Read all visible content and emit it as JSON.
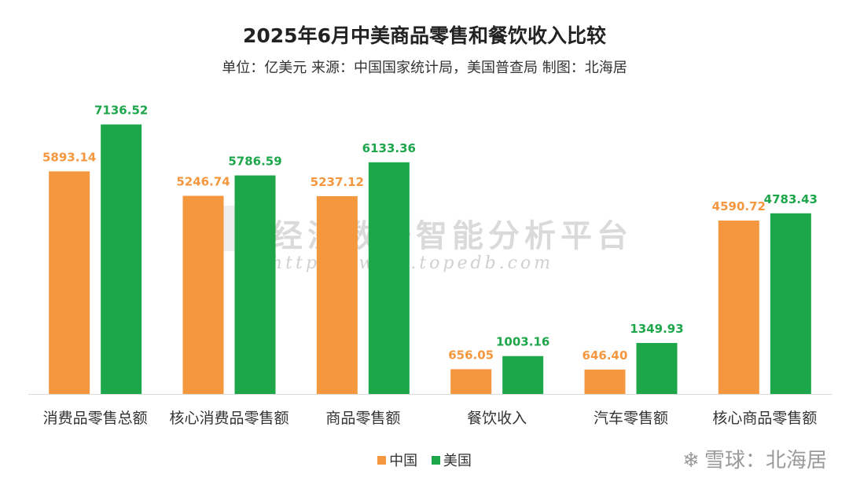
{
  "title": "2025年6月中美商品零售和餐饮收入比较",
  "subtitle": "单位：亿美元 来源：中国国家统计局，美国普查局 制图：北海居",
  "watermark": {
    "text": "经济数据智能分析平台",
    "url": "https://www.topedb.com"
  },
  "footer_watermark": {
    "icon": "snowball-icon",
    "text": "雪球：北海居"
  },
  "colors": {
    "china": "#F4973F",
    "usa": "#1DA64A"
  },
  "chart_data": {
    "type": "bar",
    "title": "2025年6月中美商品零售和餐饮收入比较",
    "subtitle": "单位：亿美元 来源：中国国家统计局，美国普查局 制图：北海居",
    "categories": [
      "消费品零售总额",
      "核心消费品零售额",
      "商品零售额",
      "餐饮收入",
      "汽车零售额",
      "核心商品零售额"
    ],
    "series": [
      {
        "name": "中国",
        "values": [
          5893.14,
          5246.74,
          5237.12,
          656.05,
          646.4,
          4590.72
        ],
        "labels": [
          "5893.14",
          "5246.74",
          "5237.12",
          "656.05",
          "646.40",
          "4590.72"
        ],
        "color": "#F4973F"
      },
      {
        "name": "美国",
        "values": [
          7136.52,
          5786.59,
          6133.36,
          1003.16,
          1349.93,
          4783.43
        ],
        "labels": [
          "7136.52",
          "5786.59",
          "6133.36",
          "1003.16",
          "1349.93",
          "4783.43"
        ],
        "color": "#1DA64A"
      }
    ],
    "ylim": [
      0,
      8000
    ],
    "grid": false,
    "legend_position": "bottom"
  }
}
